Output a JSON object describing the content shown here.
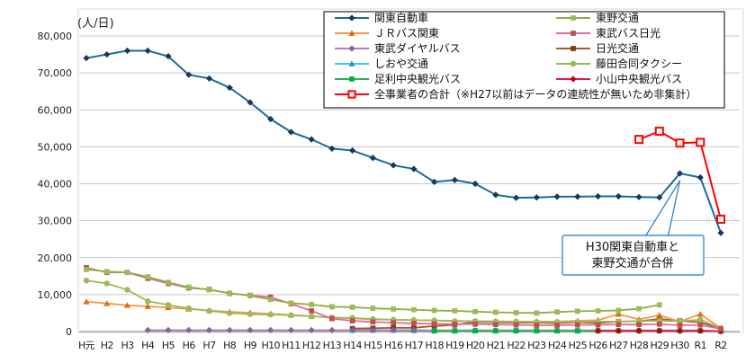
{
  "chart_data": {
    "type": "line",
    "ylabel": "(人/日)",
    "ylim": [
      0,
      80000
    ],
    "y_ticks": [
      "0",
      "10,000",
      "20,000",
      "30,000",
      "40,000",
      "50,000",
      "60,000",
      "70,000",
      "80,000"
    ],
    "y_tick_values": [
      0,
      10000,
      20000,
      30000,
      40000,
      50000,
      60000,
      70000,
      80000
    ],
    "categories": [
      "H元",
      "H2",
      "H3",
      "H4",
      "H5",
      "H6",
      "H7",
      "H8",
      "H9",
      "H10",
      "H11",
      "H12",
      "H13",
      "H14",
      "H15",
      "H16",
      "H17",
      "H18",
      "H19",
      "H20",
      "H21",
      "H22",
      "H23",
      "H24",
      "H25",
      "H26",
      "H27",
      "H28",
      "H29",
      "H30",
      "R1",
      "R2"
    ],
    "grid": true,
    "legend_position": "top-right",
    "annotation": {
      "lines": [
        "H30関東自動車と",
        "東野交通が合併"
      ],
      "target_category": "H30"
    },
    "series": [
      {
        "name": "関東自動車",
        "color": "#1a6b9a",
        "marker": "diamond",
        "marker_color": "#17375e",
        "values": [
          74000,
          75000,
          76000,
          76000,
          74500,
          69500,
          68500,
          66000,
          62000,
          57500,
          54000,
          52000,
          49500,
          49000,
          47000,
          45000,
          44000,
          40500,
          41000,
          40000,
          37000,
          36200,
          36300,
          36500,
          36500,
          36600,
          36600,
          36400,
          36300,
          42800,
          41700,
          26700
        ]
      },
      {
        "name": "東野交通",
        "color": "#8fae3c",
        "marker": "square",
        "marker_color": "#9bbb59",
        "values": [
          16800,
          16200,
          16000,
          14800,
          13300,
          12000,
          11300,
          10400,
          9700,
          8700,
          7700,
          7300,
          6700,
          6600,
          6300,
          6100,
          5900,
          5700,
          5600,
          5400,
          5200,
          5100,
          5000,
          5300,
          5500,
          5600,
          5700,
          6200,
          7200,
          null,
          null,
          null
        ]
      },
      {
        "name": "ＪＲバス関東",
        "color": "#f79646",
        "marker": "triangle",
        "marker_color": "#e36c09",
        "values": [
          8100,
          7600,
          7100,
          6800,
          6500,
          6100,
          5700,
          5300,
          5100,
          4800,
          4500,
          4200,
          3700,
          3600,
          3300,
          3200,
          3100,
          3000,
          2900,
          2800,
          2800,
          2700,
          2700,
          2700,
          2900,
          3100,
          4700,
          3300,
          4400,
          2700,
          4700,
          900
        ]
      },
      {
        "name": "東武バス日光",
        "color": "#e46aa3",
        "marker": "square",
        "marker_color": "#c0504d",
        "values": [
          17300,
          16000,
          16000,
          14400,
          13000,
          11800,
          11400,
          10300,
          9800,
          9300,
          7500,
          5600,
          3500,
          2900,
          2600,
          2400,
          2200,
          2100,
          2000,
          2000,
          1900,
          1800,
          1700,
          1700,
          1800,
          1800,
          1900,
          1900,
          2000,
          1700,
          1800,
          700
        ]
      },
      {
        "name": "東武ダイヤルバス",
        "color": "#b27fbf",
        "marker": "diamond",
        "marker_color": "#8064a2",
        "values": [
          null,
          null,
          null,
          400,
          400,
          400,
          400,
          400,
          400,
          400,
          400,
          400,
          400,
          400,
          400,
          400,
          400,
          300,
          300,
          300,
          300,
          300,
          300,
          300,
          300,
          300,
          300,
          300,
          300,
          300,
          300,
          100
        ]
      },
      {
        "name": "日光交通",
        "color": "#a45b2a",
        "marker": "square",
        "marker_color": "#7f3f12",
        "values": [
          null,
          null,
          null,
          null,
          null,
          null,
          null,
          null,
          null,
          null,
          null,
          null,
          null,
          800,
          900,
          1000,
          1000,
          1500,
          1800,
          2600,
          2500,
          2400,
          2400,
          2300,
          2500,
          2300,
          2700,
          2800,
          3400,
          2900,
          2500,
          800
        ]
      },
      {
        "name": "しおや交通",
        "color": "#4bc6e0",
        "marker": "triangle",
        "marker_color": "#1f9bd1",
        "values": [
          null,
          null,
          null,
          null,
          null,
          null,
          null,
          null,
          null,
          null,
          null,
          null,
          null,
          400,
          400,
          400,
          300,
          300,
          300,
          300,
          300,
          300,
          300,
          300,
          300,
          300,
          300,
          300,
          300,
          300,
          300,
          100
        ]
      },
      {
        "name": "藤田合同タクシー",
        "color": "#9bbb59",
        "marker": "circle",
        "marker_color": "#9bbb59",
        "values": [
          13800,
          13000,
          11300,
          8200,
          7200,
          6300,
          5600,
          5000,
          4700,
          4600,
          4400,
          4100,
          3800,
          3700,
          3400,
          3200,
          3100,
          3000,
          2800,
          2800,
          2700,
          2700,
          2600,
          2600,
          2600,
          2700,
          2700,
          2800,
          2900,
          2800,
          3200,
          900
        ]
      },
      {
        "name": "足利中央観光バス",
        "color": "#33b04a",
        "marker": "square",
        "marker_color": "#00b050",
        "values": [
          null,
          null,
          null,
          null,
          null,
          null,
          null,
          null,
          null,
          null,
          null,
          null,
          null,
          null,
          null,
          null,
          null,
          200,
          200,
          200,
          200,
          200,
          200,
          200,
          200,
          200,
          200,
          200,
          200,
          200,
          200,
          100
        ]
      },
      {
        "name": "小山中央観光バス",
        "color": "#e0185a",
        "marker": "diamond",
        "marker_color": "#c00000",
        "values": [
          null,
          null,
          null,
          null,
          null,
          null,
          null,
          null,
          null,
          null,
          null,
          null,
          null,
          null,
          null,
          null,
          null,
          null,
          null,
          null,
          null,
          null,
          null,
          null,
          null,
          200,
          200,
          200,
          200,
          200,
          200,
          100
        ]
      },
      {
        "name": "全事業者の合計（※H27以前はデータの連続性が無いため非集計）",
        "color": "#ff0000",
        "marker": "open-square",
        "marker_color": "#ff0000",
        "values": [
          null,
          null,
          null,
          null,
          null,
          null,
          null,
          null,
          null,
          null,
          null,
          null,
          null,
          null,
          null,
          null,
          null,
          null,
          null,
          null,
          null,
          null,
          null,
          null,
          null,
          null,
          null,
          52000,
          54200,
          51000,
          51200,
          30400
        ]
      }
    ]
  }
}
